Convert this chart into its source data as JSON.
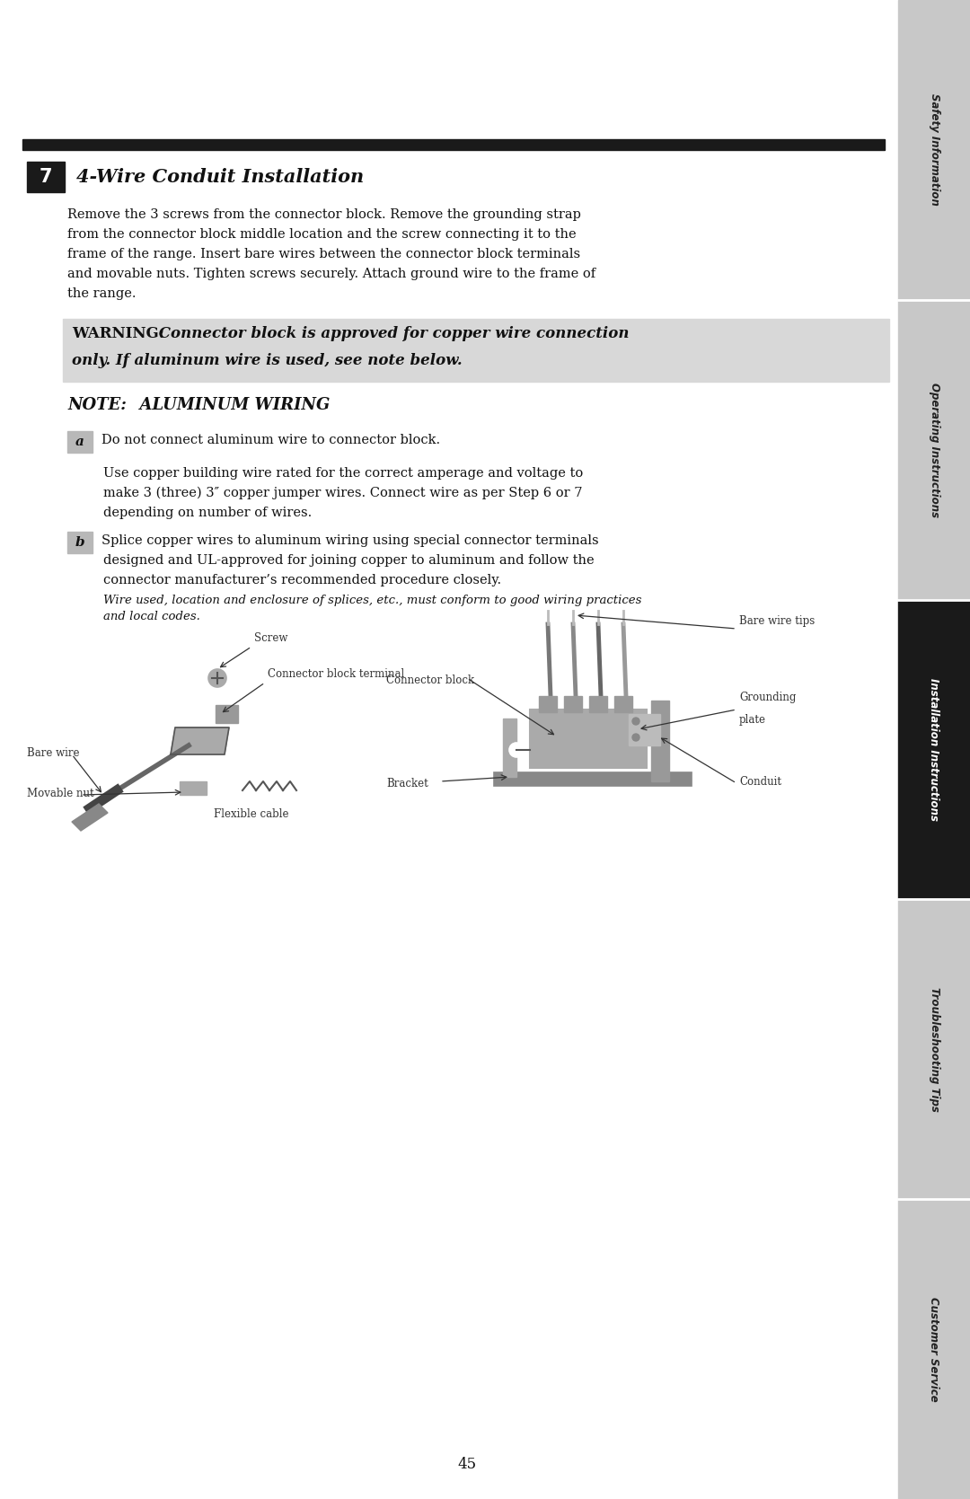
{
  "page_bg": "#ffffff",
  "sidebar_bg": "#c8c8c8",
  "sidebar_active_bg": "#1a1a1a",
  "sidebar_active_text": "#ffffff",
  "sidebar_text": "#222222",
  "sidebar_sections": [
    "Safety Information",
    "Operating Instructions",
    "Installation Instructions",
    "Troubleshooting Tips",
    "Customer Service"
  ],
  "sidebar_active_index": 2,
  "top_bar_color": "#1a1a1a",
  "step_box_color": "#1a1a1a",
  "step_box_text": "7",
  "step_box_text_color": "#ffffff",
  "step_title": "4-Wire Conduit Installation",
  "para1_line1": "Remove the 3 screws from the connector block. Remove the grounding strap",
  "para1_line2": "from the connector block middle location and the screw connecting it to the",
  "para1_line3": "frame of the range. Insert bare wires between the connector block terminals",
  "para1_line4": "and movable nuts. Tighten screws securely. Attach ground wire to the frame of",
  "para1_line5": "the range.",
  "warning_bold": "WARNING:",
  "warning_italic": " Connector block is approved for copper wire connection\nonly. If aluminum wire is used, see note below.",
  "note_bold": "NOTE:",
  "note_italic": "  ALUMINUM WIRING",
  "para_a1": "Do not connect aluminum wire to connector block.",
  "para_a2_l1": "Use copper building wire rated for the correct amperage and voltage to",
  "para_a2_l2": "make 3 (three) 3″ copper jumper wires. Connect wire as per Step 6 or 7",
  "para_a2_l3": "depending on number of wires.",
  "para_b_l1": "Splice copper wires to aluminum wiring using special connector terminals",
  "para_b_l2": "designed and UL-approved for joining copper to aluminum and follow the",
  "para_b_l3": "connector manufacturer’s recommended procedure closely.",
  "italic_note_l1": "Wire used, location and enclosure of splices, etc., must conform to good wiring practices",
  "italic_note_l2": "and local codes.",
  "page_number": "45"
}
